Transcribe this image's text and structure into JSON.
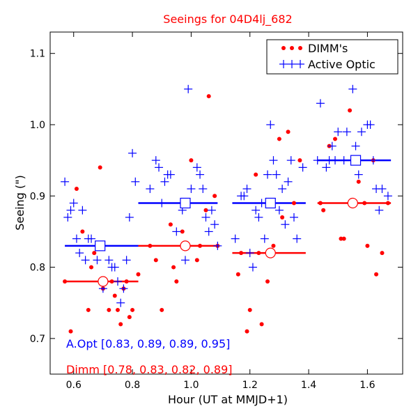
{
  "chart_data": {
    "type": "scatter",
    "title": "Seeings for 04D4lj_682",
    "xlabel": "Hour (UT at MMJD+1)",
    "ylabel": "Seeing (\")",
    "xlim": [
      0.52,
      1.72
    ],
    "ylim": [
      0.65,
      1.13
    ],
    "xticks": [
      0.6,
      0.8,
      1.0,
      1.2,
      1.4,
      1.6
    ],
    "xtick_labels": [
      "0.6",
      "0.8",
      "1.0",
      "1.2",
      "1.4",
      "1.6"
    ],
    "yticks": [
      0.7,
      0.8,
      0.9,
      1.0,
      1.1
    ],
    "ytick_labels": [
      "0.7",
      "0.8",
      "0.9",
      "1.0",
      "1.1"
    ],
    "legend": {
      "position": "top-right",
      "entries": [
        {
          "label": "DIMM's",
          "marker": "dot",
          "color": "#ff0000"
        },
        {
          "label": "Active Optic",
          "marker": "plus",
          "color": "#0000ff"
        }
      ]
    },
    "annotations": [
      {
        "text": "A.Opt [0.83, 0.89, 0.89, 0.95]",
        "color": "#0000ff"
      },
      {
        "text": "Dimm [0.78, 0.83, 0.82, 0.89]",
        "color": "#ff0000"
      }
    ],
    "series": [
      {
        "name": "DIMM's",
        "color": "#ff0000",
        "marker": "dot",
        "points": [
          [
            0.57,
            0.78
          ],
          [
            0.59,
            0.71
          ],
          [
            0.61,
            0.91
          ],
          [
            0.63,
            0.85
          ],
          [
            0.65,
            0.74
          ],
          [
            0.66,
            0.8
          ],
          [
            0.67,
            0.82
          ],
          [
            0.69,
            0.94
          ],
          [
            0.7,
            0.77
          ],
          [
            0.72,
            0.74
          ],
          [
            0.73,
            0.78
          ],
          [
            0.74,
            0.76
          ],
          [
            0.75,
            0.74
          ],
          [
            0.76,
            0.72
          ],
          [
            0.77,
            0.77
          ],
          [
            0.78,
            0.78
          ],
          [
            0.79,
            0.73
          ],
          [
            0.8,
            0.74
          ],
          [
            0.82,
            0.79
          ],
          [
            0.86,
            0.83
          ],
          [
            0.88,
            0.81
          ],
          [
            0.9,
            0.74
          ],
          [
            0.93,
            0.86
          ],
          [
            0.94,
            0.8
          ],
          [
            0.95,
            0.78
          ],
          [
            0.97,
            0.85
          ],
          [
            0.99,
            0.89
          ],
          [
            1.0,
            0.95
          ],
          [
            1.02,
            0.81
          ],
          [
            1.03,
            0.83
          ],
          [
            1.05,
            0.88
          ],
          [
            1.06,
            1.04
          ],
          [
            1.08,
            0.9
          ],
          [
            1.09,
            0.83
          ],
          [
            1.16,
            0.79
          ],
          [
            1.17,
            0.82
          ],
          [
            1.19,
            0.71
          ],
          [
            1.2,
            0.74
          ],
          [
            1.22,
            0.93
          ],
          [
            1.23,
            0.82
          ],
          [
            1.24,
            0.72
          ],
          [
            1.26,
            0.78
          ],
          [
            1.28,
            0.83
          ],
          [
            1.3,
            0.98
          ],
          [
            1.31,
            0.87
          ],
          [
            1.33,
            0.99
          ],
          [
            1.35,
            0.89
          ],
          [
            1.37,
            0.95
          ],
          [
            1.44,
            0.89
          ],
          [
            1.45,
            0.88
          ],
          [
            1.47,
            0.97
          ],
          [
            1.49,
            0.98
          ],
          [
            1.51,
            0.84
          ],
          [
            1.52,
            0.84
          ],
          [
            1.54,
            1.02
          ],
          [
            1.56,
            0.95
          ],
          [
            1.57,
            0.92
          ],
          [
            1.59,
            0.89
          ],
          [
            1.6,
            0.83
          ],
          [
            1.62,
            0.95
          ],
          [
            1.63,
            0.79
          ],
          [
            1.65,
            0.82
          ],
          [
            1.67,
            0.89
          ]
        ]
      },
      {
        "name": "Active Optic",
        "color": "#0000ff",
        "marker": "plus",
        "points": [
          [
            0.57,
            0.92
          ],
          [
            0.58,
            0.87
          ],
          [
            0.59,
            0.88
          ],
          [
            0.6,
            0.89
          ],
          [
            0.61,
            0.84
          ],
          [
            0.62,
            0.82
          ],
          [
            0.63,
            0.88
          ],
          [
            0.64,
            0.81
          ],
          [
            0.65,
            0.84
          ],
          [
            0.66,
            0.84
          ],
          [
            0.68,
            0.81
          ],
          [
            0.7,
            0.77
          ],
          [
            0.72,
            0.81
          ],
          [
            0.73,
            0.8
          ],
          [
            0.74,
            0.8
          ],
          [
            0.75,
            0.78
          ],
          [
            0.76,
            0.75
          ],
          [
            0.77,
            0.77
          ],
          [
            0.78,
            0.81
          ],
          [
            0.79,
            0.87
          ],
          [
            0.8,
            0.96
          ],
          [
            0.81,
            0.92
          ],
          [
            0.86,
            0.91
          ],
          [
            0.88,
            0.95
          ],
          [
            0.89,
            0.94
          ],
          [
            0.9,
            0.89
          ],
          [
            0.91,
            0.92
          ],
          [
            0.92,
            0.93
          ],
          [
            0.93,
            0.93
          ],
          [
            0.95,
            0.85
          ],
          [
            0.97,
            0.88
          ],
          [
            0.98,
            0.81
          ],
          [
            0.99,
            1.05
          ],
          [
            1.0,
            0.91
          ],
          [
            1.02,
            0.94
          ],
          [
            1.03,
            0.93
          ],
          [
            1.04,
            0.91
          ],
          [
            1.05,
            0.87
          ],
          [
            1.06,
            0.85
          ],
          [
            1.07,
            0.88
          ],
          [
            1.08,
            0.86
          ],
          [
            1.09,
            0.83
          ],
          [
            1.15,
            0.84
          ],
          [
            1.17,
            0.9
          ],
          [
            1.18,
            0.9
          ],
          [
            1.19,
            0.91
          ],
          [
            1.2,
            0.82
          ],
          [
            1.21,
            0.8
          ],
          [
            1.22,
            0.88
          ],
          [
            1.23,
            0.87
          ],
          [
            1.24,
            0.89
          ],
          [
            1.25,
            0.84
          ],
          [
            1.26,
            0.93
          ],
          [
            1.27,
            1.0
          ],
          [
            1.28,
            0.95
          ],
          [
            1.29,
            0.93
          ],
          [
            1.3,
            0.88
          ],
          [
            1.31,
            0.91
          ],
          [
            1.32,
            0.86
          ],
          [
            1.33,
            0.92
          ],
          [
            1.34,
            0.95
          ],
          [
            1.35,
            0.87
          ],
          [
            1.36,
            0.84
          ],
          [
            1.38,
            0.94
          ],
          [
            1.43,
            0.95
          ],
          [
            1.44,
            1.03
          ],
          [
            1.46,
            0.94
          ],
          [
            1.47,
            0.95
          ],
          [
            1.48,
            0.97
          ],
          [
            1.49,
            0.95
          ],
          [
            1.5,
            0.99
          ],
          [
            1.52,
            0.95
          ],
          [
            1.53,
            0.99
          ],
          [
            1.55,
            1.05
          ],
          [
            1.56,
            0.97
          ],
          [
            1.57,
            0.93
          ],
          [
            1.58,
            0.99
          ],
          [
            1.6,
            1.0
          ],
          [
            1.61,
            1.0
          ],
          [
            1.62,
            0.95
          ],
          [
            1.63,
            0.91
          ],
          [
            1.64,
            0.88
          ],
          [
            1.65,
            0.91
          ],
          [
            1.67,
            0.9
          ]
        ]
      },
      {
        "name": "Dimm mean",
        "color": "#ff0000",
        "marker": "open-circle",
        "segments": [
          [
            0.57,
            0.82,
            0.78
          ],
          [
            0.82,
            1.09,
            0.83
          ],
          [
            1.14,
            1.39,
            0.82
          ],
          [
            1.43,
            1.68,
            0.89
          ]
        ],
        "means": [
          [
            0.7,
            0.78
          ],
          [
            0.98,
            0.83
          ],
          [
            1.27,
            0.82
          ],
          [
            1.55,
            0.89
          ]
        ]
      },
      {
        "name": "A.Opt mean",
        "color": "#0000ff",
        "marker": "open-square",
        "segments": [
          [
            0.57,
            0.82,
            0.83
          ],
          [
            0.82,
            1.09,
            0.89
          ],
          [
            1.14,
            1.39,
            0.89
          ],
          [
            1.43,
            1.68,
            0.95
          ]
        ],
        "means": [
          [
            0.69,
            0.83
          ],
          [
            0.98,
            0.89
          ],
          [
            1.27,
            0.89
          ],
          [
            1.56,
            0.95
          ]
        ]
      }
    ]
  }
}
